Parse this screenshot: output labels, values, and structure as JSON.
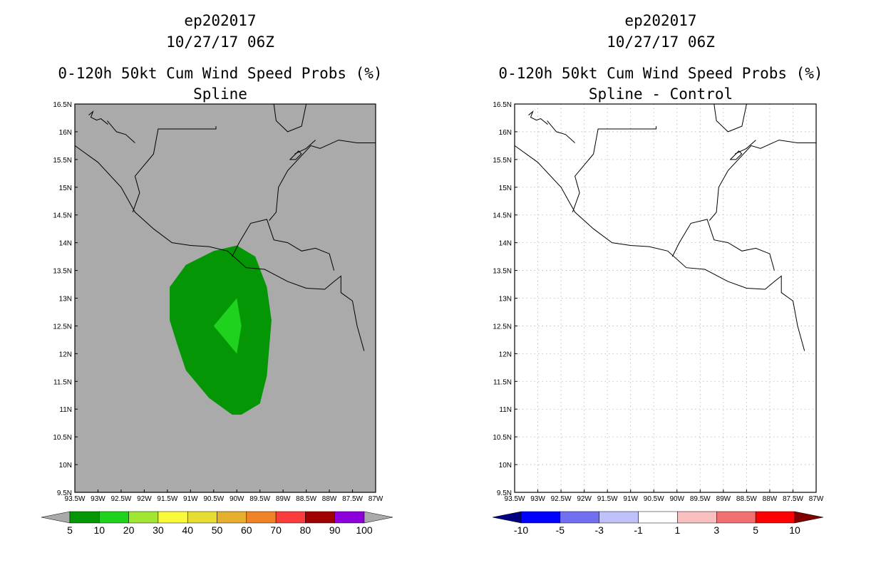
{
  "chart_data": [
    {
      "type": "heatmap",
      "title_lines": [
        "ep202017",
        "10/27/17 06Z",
        "0-120h 50kt Cum Wind Speed Probs (%)",
        "Spline"
      ],
      "xlim": [
        -93.5,
        -87.0
      ],
      "ylim": [
        9.5,
        16.5
      ],
      "xtick_labels": [
        "93.5W",
        "93W",
        "92.5W",
        "92W",
        "91.5W",
        "91W",
        "90.5W",
        "90W",
        "89.5W",
        "89W",
        "88.5W",
        "88W",
        "87.5W",
        "87W"
      ],
      "ytick_labels": [
        "9.5N",
        "10N",
        "10.5N",
        "11N",
        "11.5N",
        "12N",
        "12.5N",
        "13N",
        "13.5N",
        "14N",
        "14.5N",
        "15N",
        "15.5N",
        "16N",
        "16.5N"
      ],
      "background_color": "#aaaaaa",
      "grid": false,
      "filled_regions": [
        {
          "level": "5-10",
          "color": "#049604",
          "polygon_lonlat": [
            [
              -90.0,
              13.95
            ],
            [
              -89.6,
              13.75
            ],
            [
              -89.35,
              13.2
            ],
            [
              -89.25,
              12.6
            ],
            [
              -89.35,
              11.6
            ],
            [
              -89.5,
              11.1
            ],
            [
              -89.9,
              10.9
            ],
            [
              -90.1,
              10.9
            ],
            [
              -90.6,
              11.2
            ],
            [
              -91.1,
              11.7
            ],
            [
              -91.3,
              12.2
            ],
            [
              -91.45,
              12.6
            ],
            [
              -91.45,
              13.2
            ],
            [
              -91.1,
              13.6
            ],
            [
              -90.5,
              13.85
            ]
          ]
        },
        {
          "level": "10-20",
          "color": "#1ed21e",
          "polygon_lonlat": [
            [
              -90.0,
              13.0
            ],
            [
              -89.9,
              12.5
            ],
            [
              -90.0,
              12.0
            ],
            [
              -90.5,
              12.5
            ]
          ]
        }
      ],
      "colorbar": {
        "labels": [
          "5",
          "10",
          "20",
          "30",
          "40",
          "50",
          "60",
          "70",
          "80",
          "90",
          "100"
        ],
        "colors": [
          "#049604",
          "#1ed21e",
          "#a0e632",
          "#fafa3c",
          "#e6dc32",
          "#e6af2d",
          "#f08228",
          "#fa3c3c",
          "#a00000",
          "#8c00dc"
        ],
        "under_color": "#aaaaaa",
        "over_color": "#aaaaaa"
      }
    },
    {
      "type": "heatmap",
      "title_lines": [
        "ep202017",
        "10/27/17 06Z",
        "0-120h 50kt Cum Wind Speed Probs (%)",
        "Spline - Control"
      ],
      "xlim": [
        -93.5,
        -87.0
      ],
      "ylim": [
        9.5,
        16.5
      ],
      "xtick_labels": [
        "93.5W",
        "93W",
        "92.5W",
        "92W",
        "91.5W",
        "91W",
        "90.5W",
        "90W",
        "89.5W",
        "89W",
        "88.5W",
        "88W",
        "87.5W",
        "87W"
      ],
      "ytick_labels": [
        "9.5N",
        "10N",
        "10.5N",
        "11N",
        "11.5N",
        "12N",
        "12.5N",
        "13N",
        "13.5N",
        "14N",
        "14.5N",
        "15N",
        "15.5N",
        "16N",
        "16.5N"
      ],
      "background_color": "#ffffff",
      "grid": true,
      "filled_regions": [],
      "colorbar": {
        "labels": [
          "-10",
          "-5",
          "-3",
          "-1",
          "1",
          "3",
          "5",
          "10"
        ],
        "colors": [
          "#0000ff",
          "#7070f0",
          "#c0c0fa",
          "#ffffff",
          "#fac0c0",
          "#f07070",
          "#ff0000"
        ],
        "under_color": "#000080",
        "over_color": "#800000"
      }
    }
  ]
}
